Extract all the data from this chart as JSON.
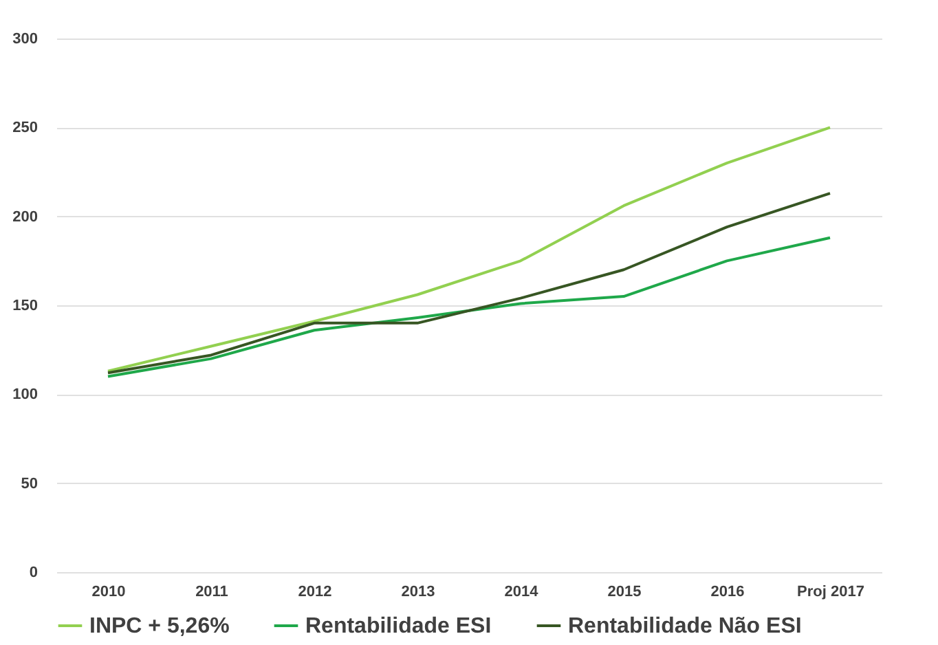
{
  "chart_data": {
    "type": "line",
    "categories": [
      "2010",
      "2011",
      "2012",
      "2013",
      "2014",
      "2015",
      "2016",
      "Proj 2017"
    ],
    "series": [
      {
        "name": "INPC + 5,26%",
        "color": "#92d050",
        "values": [
          113,
          127,
          141,
          156,
          175,
          206,
          230,
          250
        ]
      },
      {
        "name": "Rentabilidade ESI",
        "color": "#1fa84a",
        "values": [
          110,
          120,
          136,
          143,
          151,
          155,
          175,
          188
        ]
      },
      {
        "name": "Rentabilidade Não ESI",
        "color": "#375623",
        "values": [
          112,
          122,
          140,
          140,
          154,
          170,
          194,
          213
        ]
      }
    ],
    "ylim": [
      0,
      300
    ],
    "yticks": [
      0,
      50,
      100,
      150,
      200,
      250,
      300
    ],
    "grid": "y",
    "legend": "bottom",
    "marker": "none",
    "line_style": "solid"
  }
}
